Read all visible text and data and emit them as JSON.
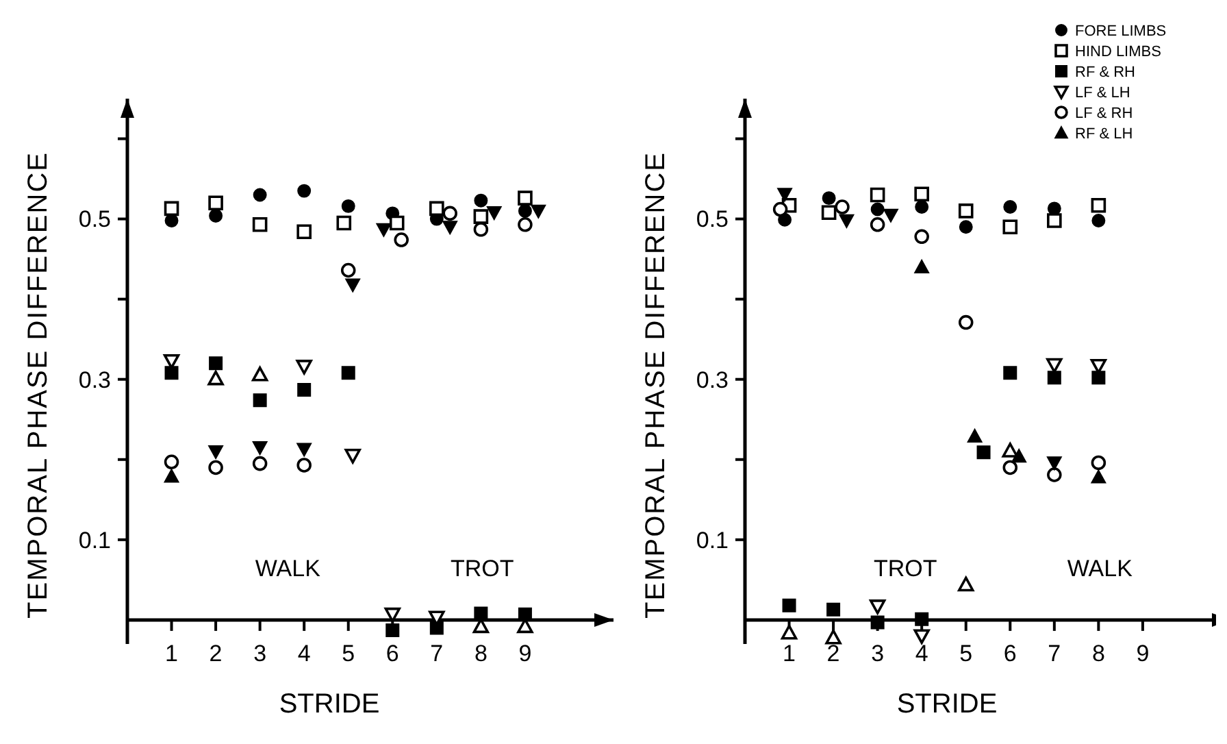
{
  "chart_data": [
    {
      "type": "scatter",
      "xlabel": "STRIDE",
      "ylabel": "TEMPORAL PHASE DIFFERENCE",
      "xlim": [
        0,
        11
      ],
      "ylim": [
        -0.03,
        0.65
      ],
      "xticks": [
        1,
        2,
        3,
        4,
        5,
        6,
        7,
        8,
        9
      ],
      "yticks": [
        {
          "value": 0.1,
          "label": "0.1"
        },
        {
          "value": 0.2,
          "label": null
        },
        {
          "value": 0.3,
          "label": "0.3"
        },
        {
          "value": 0.4,
          "label": null
        },
        {
          "value": 0.5,
          "label": "0.5"
        },
        {
          "value": 0.6,
          "label": null
        }
      ],
      "grid": false,
      "legend": false,
      "annotations": [
        "WALK",
        "TROT"
      ],
      "series": [
        {
          "color": "#000000",
          "marker": "circle",
          "x": [
            1,
            2,
            3,
            4,
            5,
            6,
            7,
            8,
            9
          ],
          "values": [
            0.498,
            0.504,
            0.53,
            0.535,
            0.516,
            0.507,
            0.5,
            0.523,
            0.51
          ]
        },
        {
          "color": "#000000",
          "marker": "square-open",
          "x": [
            1,
            2,
            3,
            4,
            4.9,
            6.1,
            7,
            8,
            9
          ],
          "values": [
            0.513,
            0.52,
            0.493,
            0.484,
            0.495,
            0.495,
            0.513,
            0.503,
            0.526
          ]
        },
        {
          "color": "#000000",
          "marker": "square",
          "x": [
            1,
            2,
            3,
            4,
            5,
            6,
            7,
            8,
            9
          ],
          "values": [
            0.308,
            0.32,
            0.274,
            0.287,
            0.308,
            -0.013,
            -0.01,
            0.008,
            0.007
          ]
        },
        {
          "color": "#000000",
          "marker": "triangle-down-open",
          "x": [
            1,
            4,
            5.1,
            6,
            7
          ],
          "values": [
            0.323,
            0.316,
            0.205,
            0.007,
            0.003
          ]
        },
        {
          "color": "#000000",
          "marker": "circle-open",
          "x": [
            1,
            2,
            3,
            4,
            5,
            6.2,
            7.3,
            8,
            9
          ],
          "values": [
            0.197,
            0.19,
            0.195,
            0.193,
            0.436,
            0.474,
            0.507,
            0.487,
            0.493
          ]
        },
        {
          "color": "#000000",
          "marker": "triangle",
          "x": [
            1
          ],
          "values": [
            0.179
          ]
        },
        {
          "color": "#000000",
          "marker": "triangle-down",
          "x": [
            2,
            3,
            4,
            5.1,
            5.8,
            7.3,
            8.3,
            9.3
          ],
          "values": [
            0.21,
            0.215,
            0.213,
            0.418,
            0.487,
            0.49,
            0.508,
            0.51
          ]
        },
        {
          "color": "#000000",
          "marker": "triangle-open",
          "x": [
            2,
            3,
            8,
            9
          ],
          "values": [
            0.301,
            0.306,
            -0.008,
            -0.008
          ]
        }
      ]
    },
    {
      "type": "scatter",
      "xlabel": "STRIDE",
      "ylabel": "TEMPORAL PHASE DIFFERENCE",
      "xlim": [
        0,
        11
      ],
      "ylim": [
        -0.03,
        0.65
      ],
      "xticks": [
        1,
        2,
        3,
        4,
        5,
        6,
        7,
        8,
        9
      ],
      "yticks": [
        {
          "value": 0.1,
          "label": "0.1"
        },
        {
          "value": 0.2,
          "label": null
        },
        {
          "value": 0.3,
          "label": "0.3"
        },
        {
          "value": 0.4,
          "label": null
        },
        {
          "value": 0.5,
          "label": "0.5"
        },
        {
          "value": 0.6,
          "label": null
        }
      ],
      "grid": false,
      "legend": "top right",
      "annotations": [
        "TROT",
        "WALK"
      ],
      "series": [
        {
          "name": "FORE LIMBS",
          "color": "#000000",
          "marker": "circle",
          "x": [
            0.9,
            1.9,
            3,
            4,
            5,
            6,
            7,
            8
          ],
          "values": [
            0.499,
            0.526,
            0.512,
            0.515,
            0.49,
            0.515,
            0.513,
            0.498
          ]
        },
        {
          "name": "HIND LIMBS",
          "color": "#000000",
          "marker": "square-open",
          "x": [
            1,
            1.9,
            3,
            4,
            5,
            6,
            7,
            8
          ],
          "values": [
            0.517,
            0.508,
            0.53,
            0.531,
            0.51,
            0.49,
            0.498,
            0.517
          ]
        },
        {
          "name": "RF & RH",
          "color": "#000000",
          "marker": "square",
          "x": [
            1,
            2,
            3,
            4,
            5.4,
            6,
            7,
            8
          ],
          "values": [
            0.018,
            0.013,
            -0.003,
            0.001,
            0.209,
            0.308,
            0.302,
            0.302
          ]
        },
        {
          "name": "LF & LH",
          "color": "#000000",
          "marker": "triangle-down-open",
          "x": [
            3,
            4,
            7,
            8
          ],
          "values": [
            0.017,
            -0.02,
            0.318,
            0.317
          ]
        },
        {
          "name": "LF & RH",
          "color": "#000000",
          "marker": "circle-open",
          "x": [
            0.8,
            2.2,
            3,
            4,
            5,
            6,
            7,
            8
          ],
          "values": [
            0.512,
            0.515,
            0.493,
            0.478,
            0.371,
            0.19,
            0.181,
            0.196
          ]
        },
        {
          "name": "RF & LH",
          "color": "#000000",
          "marker": "triangle",
          "x": [
            4,
            5.2,
            6.2,
            8
          ],
          "values": [
            0.44,
            0.229,
            0.204,
            0.178
          ]
        },
        {
          "color": "#000000",
          "marker": "triangle-down",
          "x": [
            0.9,
            2.3,
            3.3,
            7
          ],
          "values": [
            0.531,
            0.498,
            0.505,
            0.196
          ]
        },
        {
          "color": "#000000",
          "marker": "triangle-open",
          "x": [
            1,
            2,
            5,
            6
          ],
          "values": [
            -0.016,
            -0.022,
            0.044,
            0.211
          ]
        }
      ]
    }
  ]
}
